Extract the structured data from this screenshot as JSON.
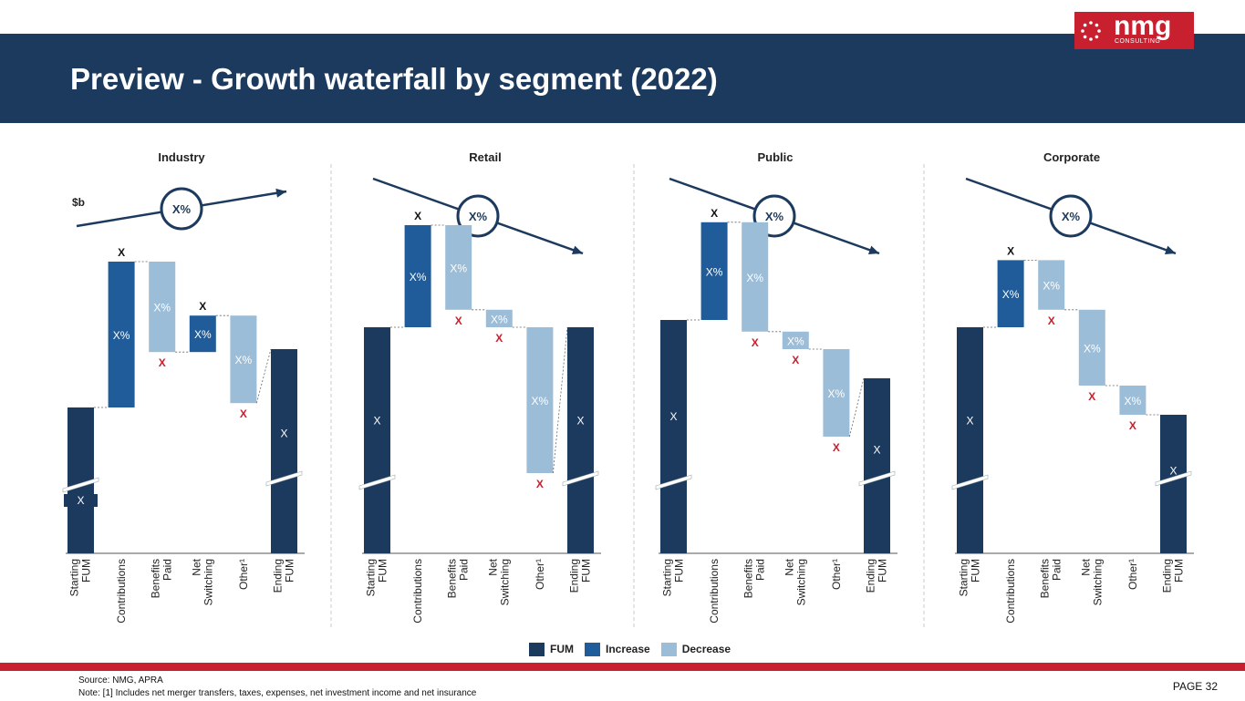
{
  "header": {
    "title": "Preview - Growth waterfall by segment (2022)"
  },
  "logo": {
    "name": "nmg",
    "sub": "CONSULTING"
  },
  "colors": {
    "fum": "#1c3a5e",
    "increase": "#1f5c99",
    "decrease": "#9cbdd8",
    "accent": "#c8202f"
  },
  "legend": [
    {
      "label": "FUM",
      "color": "#1c3a5e"
    },
    {
      "label": "Increase",
      "color": "#1f5c99"
    },
    {
      "label": "Decrease",
      "color": "#9cbdd8"
    }
  ],
  "footer": {
    "source": "Source: NMG, APRA",
    "note": "Note: [1] Includes net merger transfers, taxes, expenses, net investment income and net insurance",
    "page": "PAGE 32"
  },
  "chart_data": [
    {
      "type": "bar",
      "title": "Industry",
      "unit": "$b",
      "trend": "up",
      "trend_label": "X%",
      "categories": [
        "Starting FUM",
        "Contributions",
        "Benefits Paid",
        "Net Switching",
        "Other¹",
        "Ending FUM"
      ],
      "kinds": [
        "fum",
        "increase",
        "decrease",
        "increase",
        "decrease",
        "fum"
      ],
      "values": [
        100,
        100,
        -62,
        25,
        -60,
        140
      ],
      "inner_labels": [
        "",
        "X%",
        "X%",
        "X%",
        "X%",
        "X"
      ],
      "value_labels": [
        "X",
        "X",
        "X",
        "X",
        "X",
        ""
      ],
      "axis_break": [
        true,
        false,
        false,
        false,
        false,
        true
      ]
    },
    {
      "type": "bar",
      "title": "Retail",
      "unit": "",
      "trend": "down",
      "trend_label": "X%",
      "categories": [
        "Starting FUM",
        "Contributions",
        "Benefits Paid",
        "Net Switching",
        "Other¹",
        "Ending FUM"
      ],
      "kinds": [
        "fum",
        "increase",
        "decrease",
        "decrease",
        "decrease",
        "fum"
      ],
      "values": [
        155,
        70,
        -58,
        -12,
        -100,
        155
      ],
      "inner_labels": [
        "X",
        "X%",
        "X%",
        "X%",
        "X%",
        "X"
      ],
      "value_labels": [
        "",
        "X",
        "X",
        "X",
        "X",
        ""
      ],
      "axis_break": [
        true,
        false,
        false,
        false,
        false,
        true
      ]
    },
    {
      "type": "bar",
      "title": "Public",
      "unit": "",
      "trend": "down",
      "trend_label": "X%",
      "categories": [
        "Starting FUM",
        "Contributions",
        "Benefits Paid",
        "Net Switching",
        "Other¹",
        "Ending FUM"
      ],
      "kinds": [
        "fum",
        "increase",
        "decrease",
        "decrease",
        "decrease",
        "fum"
      ],
      "values": [
        160,
        67,
        -75,
        -12,
        -60,
        120
      ],
      "inner_labels": [
        "X",
        "X%",
        "X%",
        "X%",
        "X%",
        "X"
      ],
      "value_labels": [
        "",
        "X",
        "X",
        "X",
        "X",
        ""
      ],
      "axis_break": [
        true,
        false,
        false,
        false,
        false,
        true
      ]
    },
    {
      "type": "bar",
      "title": "Corporate",
      "unit": "",
      "trend": "down",
      "trend_label": "X%",
      "categories": [
        "Starting FUM",
        "Contributions",
        "Benefits Paid",
        "Net Switching",
        "Other¹",
        "Ending FUM"
      ],
      "kinds": [
        "fum",
        "increase",
        "decrease",
        "decrease",
        "decrease",
        "fum"
      ],
      "values": [
        155,
        46,
        -34,
        -52,
        -20,
        95
      ],
      "inner_labels": [
        "X",
        "X%",
        "X%",
        "X%",
        "X%",
        "X"
      ],
      "value_labels": [
        "",
        "X",
        "X",
        "X",
        "X",
        ""
      ],
      "axis_break": [
        true,
        false,
        false,
        false,
        false,
        true
      ]
    }
  ]
}
